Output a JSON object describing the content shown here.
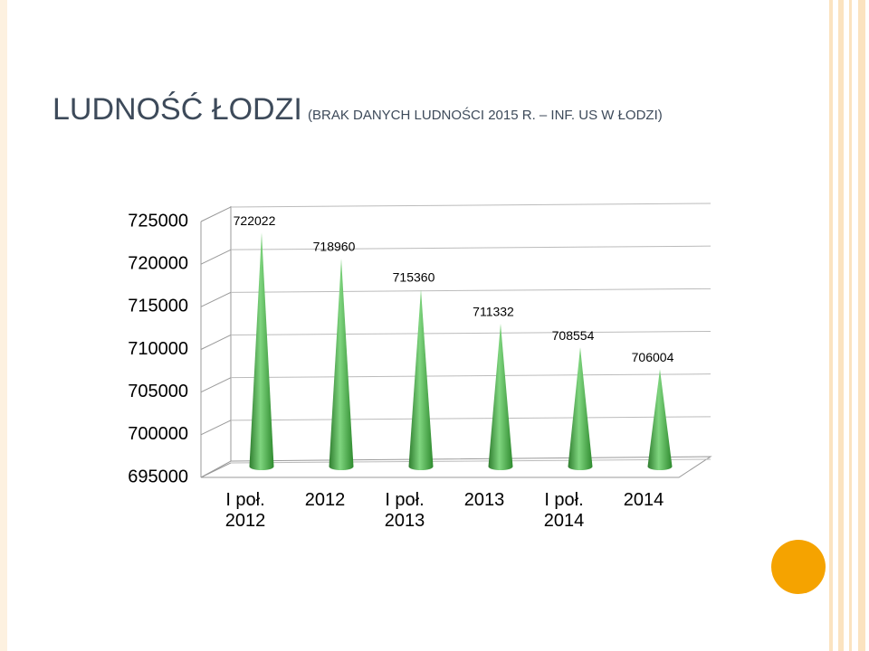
{
  "chart_data": {
    "type": "cone",
    "title": "LUDNOŚĆ ŁODZI",
    "subtitle": "(BRAK DANYCH LUDNOŚCI 2015 R. – INF. US W ŁODZI)",
    "categories": [
      "I poł. 2012",
      "2012",
      "I poł. 2013",
      "2013",
      "I poł. 2014",
      "2014"
    ],
    "values": [
      722022,
      718960,
      715360,
      711332,
      708554,
      706004
    ],
    "color": "#4fae4f",
    "ylim": [
      695000,
      725000
    ],
    "yticks": [
      695000,
      700000,
      705000,
      710000,
      715000,
      720000,
      725000
    ],
    "grid": true
  }
}
